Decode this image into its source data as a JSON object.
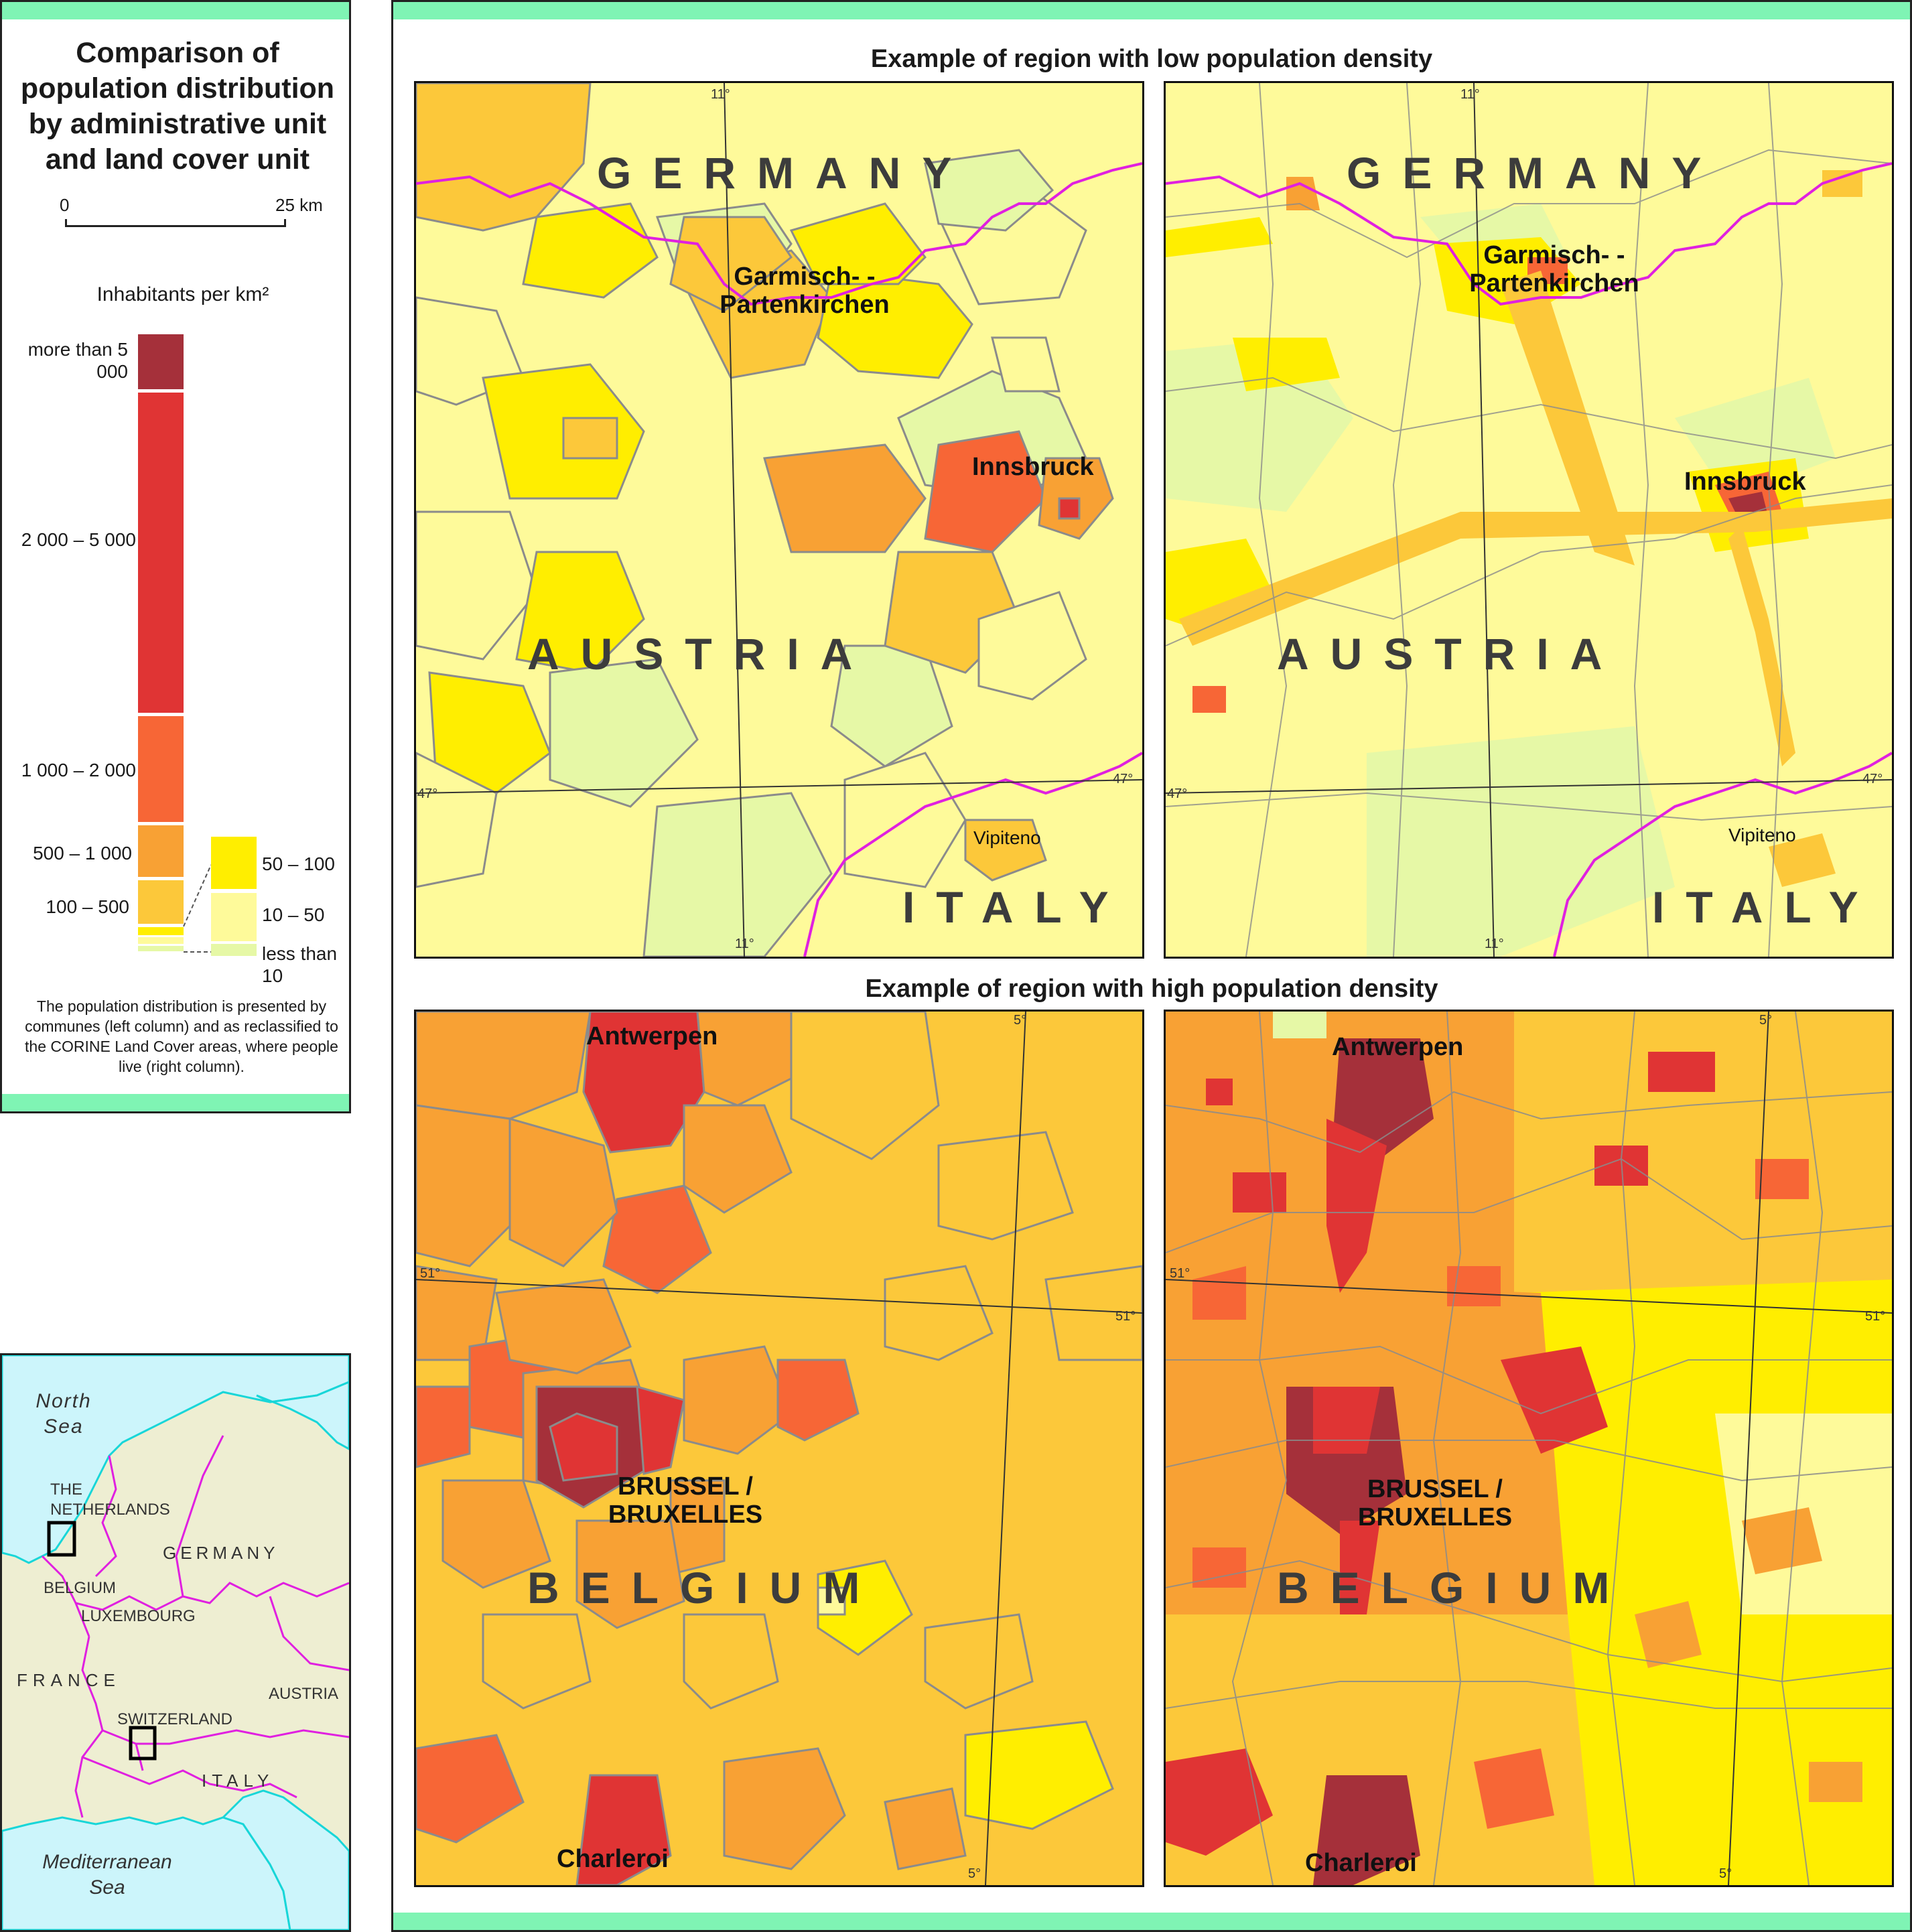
{
  "legend": {
    "title": "Comparison of population distribution by administrative unit and land cover unit",
    "scale": {
      "zero": "0",
      "max": "25 km"
    },
    "unit_label": "Inhabitants per km²",
    "classes": [
      {
        "label": "more than 5 000",
        "color": "#a5303a"
      },
      {
        "label": "2 000 – 5 000",
        "color": "#e03434"
      },
      {
        "label": "1 000 – 2 000",
        "color": "#f76636"
      },
      {
        "label": "500 – 1 000",
        "color": "#f8a134"
      },
      {
        "label": "100 – 500",
        "color": "#fcc83a"
      },
      {
        "label": "50 – 100",
        "color": "#ffee00"
      },
      {
        "label": "10 – 50",
        "color": "#fefa9a"
      },
      {
        "label": "less than 10",
        "color": "#e6f8a6"
      }
    ],
    "note": "The population distribution is presented by communes (left column) and as reclassified to the CORINE Land Cover areas, where people live (right column)."
  },
  "locator": {
    "labels": [
      "North Sea",
      "THE NETHERLANDS",
      "GERMANY",
      "BELGIUM",
      "LUXEMBOURG",
      "FRANCE",
      "SWITZERLAND",
      "AUSTRIA",
      "ITALY",
      "Mediterranean Sea"
    ],
    "colors": {
      "sea": "#ccf5fb",
      "land": "#eeeed2",
      "border": "#e020e0",
      "coast": "#18d6d8"
    }
  },
  "sections": {
    "low": {
      "title": "Example of region with low population density",
      "countries": [
        "GERMANY",
        "AUSTRIA",
        "ITALY"
      ],
      "cities": [
        "Garmisch- -Partenkirchen",
        "Innsbruck",
        "Vipiteno"
      ],
      "graticule": {
        "lon": "11°",
        "lat": "47°"
      }
    },
    "high": {
      "title": "Example of region with high population density",
      "countries": [
        "BELGIUM"
      ],
      "cities": [
        "Antwerpen",
        "BRUSSEL / BRUXELLES",
        "Charleroi"
      ],
      "graticule": {
        "lon": "5°",
        "lat": "51°"
      }
    }
  }
}
